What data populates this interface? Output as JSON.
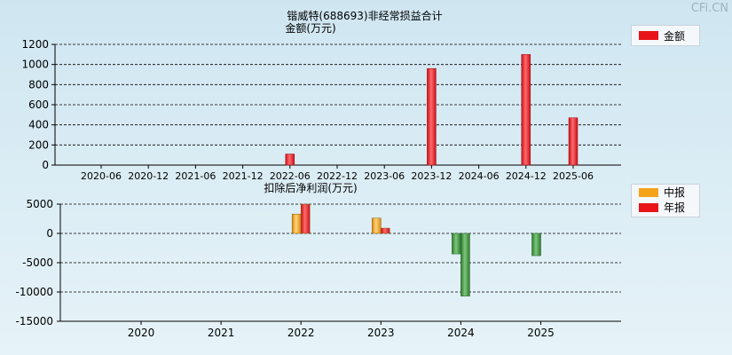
{
  "watermark": "CFi.CN",
  "chart_data": [
    {
      "type": "bar",
      "title": "锴威特(688693)非经常损益合计",
      "ylabel": "金额(万元)",
      "ylim": [
        0,
        1200
      ],
      "yticks": [
        0,
        200,
        400,
        600,
        800,
        1000,
        1200
      ],
      "categories": [
        "2020-06",
        "2020-12",
        "2021-06",
        "2021-12",
        "2022-06",
        "2022-12",
        "2023-06",
        "2023-12",
        "2024-06",
        "2024-12",
        "2025-06"
      ],
      "series": [
        {
          "name": "金额",
          "color": "#e8141a",
          "values": [
            0,
            0,
            0,
            0,
            110,
            0,
            0,
            960,
            0,
            1100,
            470
          ]
        }
      ],
      "grid": true,
      "legend": "top-right"
    },
    {
      "type": "bar",
      "ylabel": "扣除后净利润(万元)",
      "ylim": [
        -15000,
        5000
      ],
      "yticks": [
        -15000,
        -10000,
        -5000,
        0,
        5000
      ],
      "categories": [
        "2020",
        "2021",
        "2022",
        "2023",
        "2024",
        "2025"
      ],
      "series": [
        {
          "name": "中报",
          "color": "#f6a31c",
          "negative_color": "#3e8f3e",
          "values": [
            null,
            null,
            3300,
            2600,
            -3500,
            -3800
          ]
        },
        {
          "name": "年报",
          "color": "#e8141a",
          "negative_color": "#3e8f3e",
          "values": [
            null,
            null,
            5000,
            900,
            -10700,
            null
          ]
        }
      ],
      "grid": true,
      "legend": "top-right"
    }
  ]
}
